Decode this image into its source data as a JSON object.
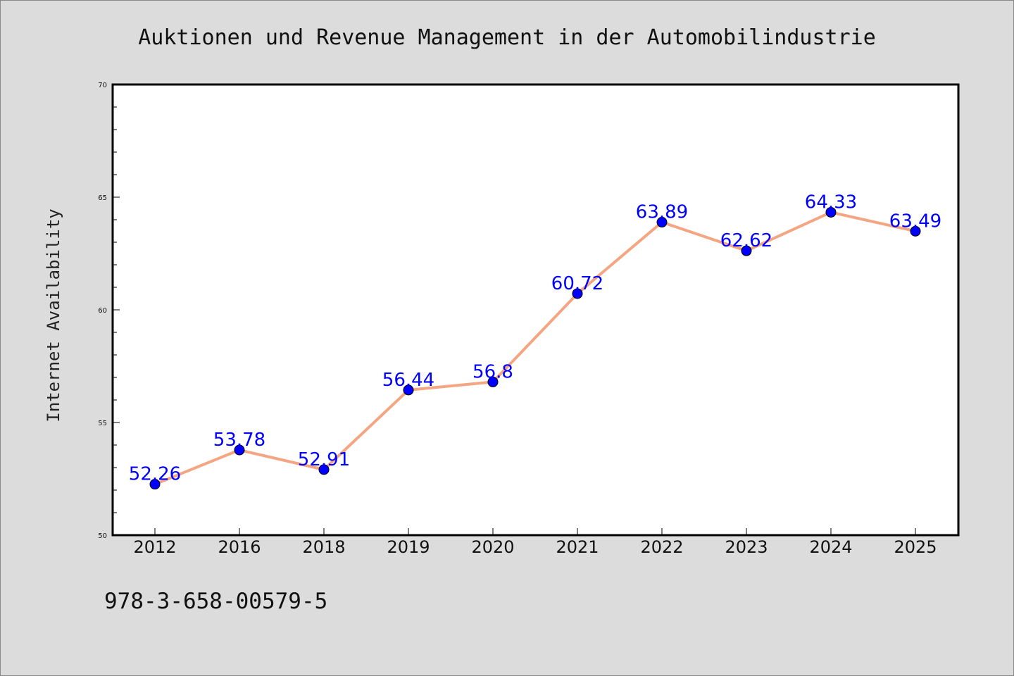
{
  "chart_data": {
    "type": "line",
    "title": "Auktionen und Revenue Management in der Automobilindustrie",
    "xlabel": "",
    "ylabel": "Internet Availability",
    "categories": [
      "2012",
      "2016",
      "2018",
      "2019",
      "2020",
      "2021",
      "2022",
      "2023",
      "2024",
      "2025"
    ],
    "series": [
      {
        "values": [
          52.26,
          53.78,
          52.91,
          56.44,
          56.8,
          60.72,
          63.89,
          62.62,
          64.33,
          63.49
        ],
        "labels": [
          "52.26",
          "53.78",
          "52.91",
          "56.44",
          "56.8",
          "60.72",
          "63.89",
          "62.62",
          "64.33",
          "63.49"
        ]
      }
    ],
    "ylim": [
      50,
      70
    ],
    "yticks": [
      50,
      55,
      60,
      65,
      70
    ],
    "ytick_labels": [
      "50",
      "55",
      "60",
      "65",
      "70"
    ],
    "grid": false,
    "legend": "none",
    "line_color": "#f4a582",
    "marker_color": "#0000ff",
    "label_color": "#0000ff",
    "footer_text": "978-3-658-00579-5"
  }
}
